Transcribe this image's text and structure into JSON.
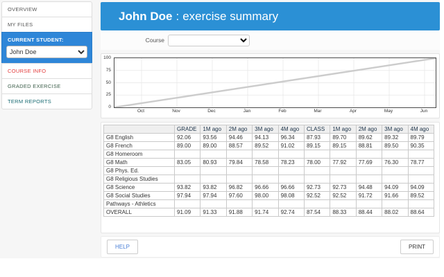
{
  "colors": {
    "header_blue": "#2b90d5",
    "sidebar_active_blue": "#2e86d8",
    "course_info_red": "#e23b3b",
    "graded_exercise_green": "#3d5f4b",
    "term_reports_teal": "#1a6b72",
    "chart_line_gray": "#cccccc",
    "grid_gray": "#e6e6e6"
  },
  "sidebar": {
    "items": [
      {
        "label": "OVERVIEW"
      },
      {
        "label": "MY FILES"
      },
      {
        "label": "CURRENT STUDENT:"
      },
      {
        "label": "COURSE INFO"
      },
      {
        "label": "GRADED EXERCISE"
      },
      {
        "label": "TERM REPORTS"
      }
    ],
    "student_select": {
      "value": "John Doe"
    }
  },
  "header": {
    "student_name": "John Doe",
    "separator": ":",
    "title": "exercise summary"
  },
  "course": {
    "label": "Course",
    "selected_value": ""
  },
  "chart_data": {
    "type": "line",
    "title": "",
    "xlabel": "",
    "ylabel": "",
    "x_ticks": [
      "Oct",
      "Nov",
      "Dec",
      "Jan",
      "Feb",
      "Mar",
      "Apr",
      "May",
      "Jun"
    ],
    "y_ticks": [
      100,
      75,
      50,
      25,
      0
    ],
    "ylim": [
      0,
      100
    ],
    "grid": true,
    "legend": false,
    "series": [
      {
        "name": "target-progress-line",
        "description": "straight diagonal line from 0 at plot left edge to 100 at plot right edge",
        "x": [
          "Oct",
          "Nov",
          "Dec",
          "Jan",
          "Feb",
          "Mar",
          "Apr",
          "May",
          "Jun"
        ],
        "values": [
          8,
          19,
          31,
          41,
          52,
          64,
          75,
          86,
          97
        ]
      }
    ]
  },
  "table": {
    "columns": [
      "",
      "GRADE",
      "1M ago",
      "2M ago",
      "3M ago",
      "4M ago",
      "CLASS",
      "1M ago",
      "2M ago",
      "3M ago",
      "4M ago"
    ],
    "rows": [
      {
        "label": "G8 English",
        "values": [
          "92.06",
          "93.56",
          "94.46",
          "94.13",
          "96.34",
          "87.93",
          "89.70",
          "89.62",
          "89.32",
          "89.79"
        ]
      },
      {
        "label": "G8 French",
        "values": [
          "89.00",
          "89.00",
          "88.57",
          "89.52",
          "91.02",
          "89.15",
          "89.15",
          "88.81",
          "89.50",
          "90.35"
        ]
      },
      {
        "label": "G8 Homeroom",
        "values": [
          "",
          "",
          "",
          "",
          "",
          "",
          "",
          "",
          "",
          ""
        ]
      },
      {
        "label": "G8 Math",
        "values": [
          "83.05",
          "80.93",
          "79.84",
          "78.58",
          "78.23",
          "78.00",
          "77.92",
          "77.69",
          "76.30",
          "78.77"
        ]
      },
      {
        "label": "G8 Phys. Ed.",
        "values": [
          "",
          "",
          "",
          "",
          "",
          "",
          "",
          "",
          "",
          ""
        ]
      },
      {
        "label": "G8 Religious Studies",
        "values": [
          "",
          "",
          "",
          "",
          "",
          "",
          "",
          "",
          "",
          ""
        ]
      },
      {
        "label": "G8 Science",
        "values": [
          "93.82",
          "93.82",
          "96.82",
          "96.66",
          "96.66",
          "92.73",
          "92.73",
          "94.48",
          "94.09",
          "94.09"
        ]
      },
      {
        "label": "G8 Social Studies",
        "values": [
          "97.94",
          "97.94",
          "97.60",
          "98.00",
          "98.08",
          "92.52",
          "92.52",
          "91.72",
          "91.66",
          "89.52"
        ]
      },
      {
        "label": "Pathways - Athletics",
        "values": [
          "",
          "",
          "",
          "",
          "",
          "",
          "",
          "",
          "",
          ""
        ]
      },
      {
        "label": "OVERALL",
        "values": [
          "91.09",
          "91.33",
          "91.88",
          "91.74",
          "92.74",
          "87.54",
          "88.33",
          "88.44",
          "88.02",
          "88.64"
        ]
      }
    ]
  },
  "footer": {
    "help_label": "HELP",
    "print_label": "PRINT"
  }
}
